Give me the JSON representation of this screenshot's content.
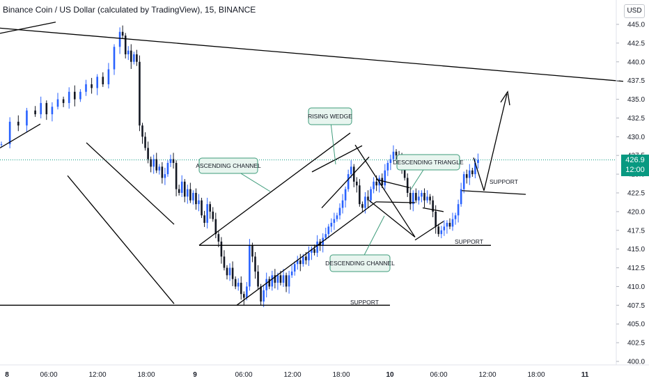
{
  "header": {
    "title": "Binance Coin / US Dollar (calculated by TradingView), 15, BINANCE",
    "currency": "USD"
  },
  "price_badge": {
    "price": "426.9",
    "countdown": "12:00",
    "color": "#089981"
  },
  "colors": {
    "up": "#2962ff",
    "down": "#131722",
    "lines": "#000000",
    "callout_border": "#3d9b7a",
    "callout_fill": "#e8f5ef"
  },
  "annotations": {
    "ascending_channel": "ASCENDING CHANNEL",
    "rising_wedge": "RISING WEDGE",
    "descending_triangle": "DESCENDING TRIANGLE",
    "descending_channel": "DESCENDING CHANNEL",
    "support_1": "SUPPORT",
    "support_2": "SUPPORT",
    "support_3": "SUPPORT"
  },
  "chart_data": {
    "type": "candlestick",
    "title": "Binance Coin / US Dollar (calculated by TradingView), 15, BINANCE",
    "ylim": [
      400.0,
      446.5
    ],
    "y_ticks": [
      "445.0",
      "442.5",
      "440.0",
      "437.5",
      "435.0",
      "432.5",
      "430.0",
      "427.5",
      "425.0",
      "422.5",
      "420.0",
      "417.5",
      "415.0",
      "412.5",
      "410.0",
      "407.5",
      "405.0",
      "402.5",
      "400.0"
    ],
    "x_ticks": [
      "8",
      "06:00",
      "12:00",
      "18:00",
      "9",
      "06:00",
      "12:00",
      "18:00",
      "10",
      "06:00",
      "12:00",
      "18:00",
      "11"
    ],
    "price_line": 426.9,
    "close_path": [
      [
        0,
        429
      ],
      [
        3,
        432
      ],
      [
        6,
        431.5
      ],
      [
        9,
        433.5
      ],
      [
        12,
        433
      ],
      [
        14,
        434.5
      ],
      [
        16,
        433
      ],
      [
        18,
        434
      ],
      [
        20,
        435
      ],
      [
        22,
        434.5
      ],
      [
        24,
        436
      ],
      [
        26,
        435
      ],
      [
        28,
        436
      ],
      [
        30,
        437
      ],
      [
        32,
        436.5
      ],
      [
        34,
        438
      ],
      [
        36,
        437
      ],
      [
        38,
        439
      ],
      [
        40,
        442
      ],
      [
        42,
        444
      ],
      [
        43,
        443.5
      ],
      [
        44,
        441
      ],
      [
        45,
        441.5
      ],
      [
        46,
        440
      ],
      [
        47,
        441
      ],
      [
        48,
        440
      ],
      [
        49,
        431.5
      ],
      [
        50,
        430
      ],
      [
        51,
        428.5
      ],
      [
        52,
        427
      ],
      [
        53,
        426
      ],
      [
        54,
        427
      ],
      [
        55,
        425.5
      ],
      [
        56,
        426
      ],
      [
        57,
        424.5
      ],
      [
        58,
        425
      ],
      [
        59,
        426.5
      ],
      [
        60,
        427
      ],
      [
        61,
        426.5
      ],
      [
        62,
        423
      ],
      [
        63,
        422.5
      ],
      [
        64,
        424
      ],
      [
        65,
        422
      ],
      [
        66,
        423
      ],
      [
        67,
        421.5
      ],
      [
        68,
        422.5
      ],
      [
        69,
        421
      ],
      [
        70,
        421.5
      ],
      [
        71,
        419.5
      ],
      [
        72,
        418.5
      ],
      [
        73,
        421
      ],
      [
        74,
        420
      ],
      [
        75,
        419
      ],
      [
        76,
        417
      ],
      [
        77,
        416
      ],
      [
        78,
        414
      ],
      [
        79,
        412.5
      ],
      [
        80,
        411.5
      ],
      [
        81,
        412.5
      ],
      [
        82,
        411
      ],
      [
        83,
        410
      ],
      [
        84,
        410.5
      ],
      [
        85,
        409
      ],
      [
        86,
        408.5
      ],
      [
        87,
        410
      ],
      [
        88,
        415.5
      ],
      [
        89,
        414
      ],
      [
        90,
        412
      ],
      [
        91,
        410
      ],
      [
        92,
        408
      ],
      [
        93,
        409.5
      ],
      [
        94,
        411
      ],
      [
        95,
        410
      ],
      [
        96,
        411.5
      ],
      [
        97,
        410.5
      ],
      [
        98,
        411.5
      ],
      [
        99,
        410.5
      ],
      [
        100,
        411.5
      ],
      [
        101,
        410
      ],
      [
        102,
        411.5
      ],
      [
        103,
        412
      ],
      [
        104,
        413
      ],
      [
        105,
        413.5
      ],
      [
        106,
        413
      ],
      [
        107,
        414
      ],
      [
        108,
        413.5
      ],
      [
        109,
        414.5
      ],
      [
        110,
        415
      ],
      [
        111,
        414.5
      ],
      [
        112,
        416
      ],
      [
        113,
        415.5
      ],
      [
        114,
        416.5
      ],
      [
        115,
        417
      ],
      [
        116,
        418
      ],
      [
        117,
        418.5
      ],
      [
        118,
        419
      ],
      [
        119,
        419.5
      ],
      [
        120,
        420.5
      ],
      [
        121,
        421.5
      ],
      [
        122,
        423
      ],
      [
        123,
        425
      ],
      [
        124,
        426
      ],
      [
        125,
        424
      ],
      [
        126,
        423.5
      ],
      [
        127,
        421
      ],
      [
        128,
        420.5
      ],
      [
        129,
        422
      ],
      [
        130,
        421.5
      ],
      [
        131,
        423
      ],
      [
        132,
        424
      ],
      [
        133,
        423.5
      ],
      [
        134,
        424.5
      ],
      [
        135,
        423.5
      ],
      [
        136,
        425.5
      ],
      [
        137,
        426.5
      ],
      [
        138,
        427
      ],
      [
        139,
        428
      ],
      [
        140,
        427.5
      ],
      [
        141,
        427
      ],
      [
        142,
        426
      ],
      [
        143,
        424.5
      ],
      [
        144,
        422.5
      ],
      [
        145,
        421
      ],
      [
        146,
        422.5
      ],
      [
        147,
        421.5
      ],
      [
        148,
        422
      ],
      [
        149,
        422.5
      ],
      [
        150,
        421.5
      ],
      [
        151,
        422
      ],
      [
        152,
        421.5
      ],
      [
        153,
        420
      ],
      [
        154,
        418
      ],
      [
        155,
        417
      ],
      [
        156,
        417.5
      ],
      [
        157,
        418
      ],
      [
        158,
        418.5
      ],
      [
        159,
        418
      ],
      [
        160,
        419
      ],
      [
        161,
        419.5
      ],
      [
        162,
        421
      ],
      [
        163,
        423
      ],
      [
        164,
        425
      ],
      [
        165,
        424.5
      ],
      [
        166,
        425.5
      ],
      [
        167,
        425
      ],
      [
        168,
        426.5
      ],
      [
        169,
        426.9
      ]
    ],
    "candle_range": {
      "first_label": "8",
      "last_label": "11"
    }
  }
}
